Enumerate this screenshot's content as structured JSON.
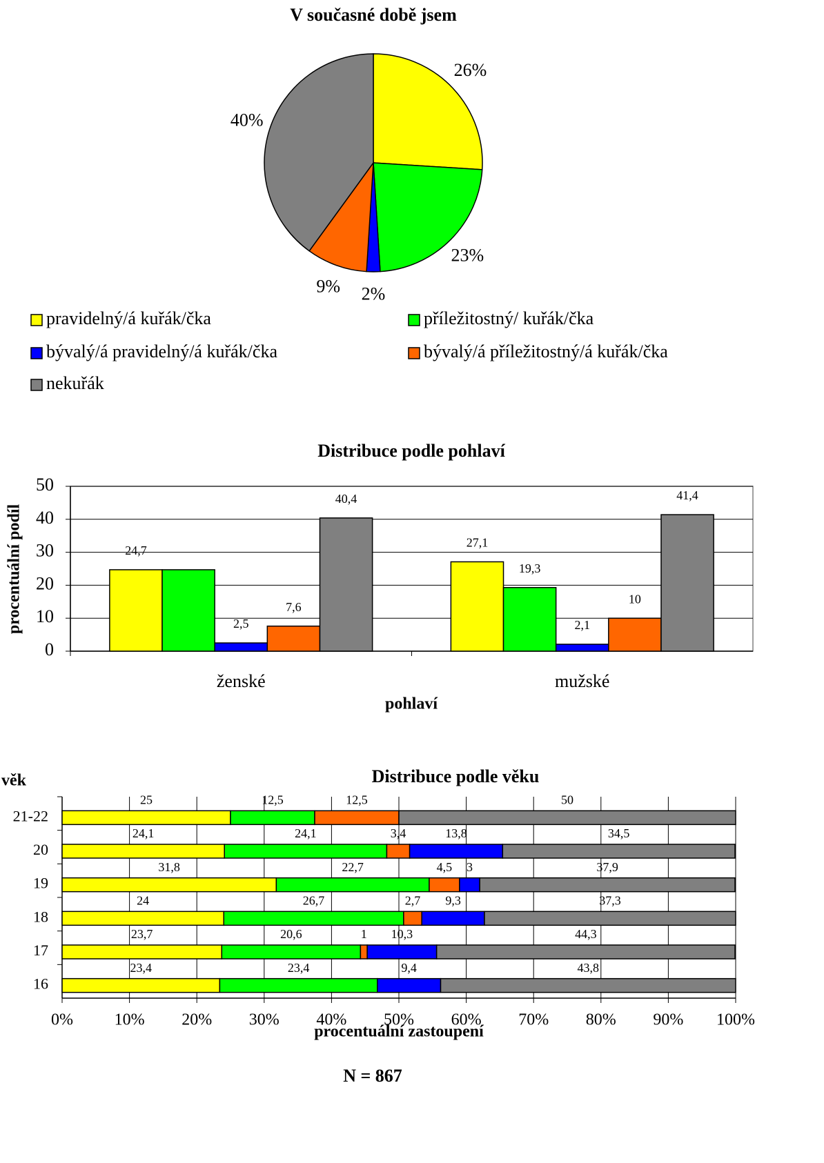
{
  "chart_data": [
    {
      "type": "pie",
      "title": "V současné době jsem",
      "categories": [
        "pravidelný/á kuřák/čka",
        "příležitostný/ kuřák/čka",
        "bývalý/á pravidelný/á kuřák/čka",
        "bývalý/á příležitostný/á kuřák/čka",
        "nekuřák"
      ],
      "values": [
        26,
        23,
        2,
        9,
        40
      ],
      "value_labels": [
        "26%",
        "23%",
        "2%",
        "9%",
        "40%"
      ],
      "colors": [
        "#ffff00",
        "#00ff00",
        "#0000ff",
        "#ff6600",
        "#808080"
      ],
      "legend": "bottom"
    },
    {
      "type": "bar",
      "title": "Distribuce podle pohlaví",
      "categories": [
        "ženské",
        "mužské"
      ],
      "series": [
        {
          "color": "#ffff00",
          "values": [
            24.7,
            27.1
          ],
          "value_labels": [
            "24,7",
            "27,1"
          ]
        },
        {
          "color": "#00ff00",
          "values": [
            24.7,
            19.3
          ],
          "value_labels": [
            null,
            "19,3"
          ]
        },
        {
          "color": "#0000ff",
          "values": [
            2.5,
            2.1
          ],
          "value_labels": [
            "2,5",
            "2,1"
          ]
        },
        {
          "color": "#ff6600",
          "values": [
            7.6,
            10
          ],
          "value_labels": [
            "7,6",
            "10"
          ]
        },
        {
          "color": "#808080",
          "values": [
            40.4,
            41.4
          ],
          "value_labels": [
            "40,4",
            "41,4"
          ]
        }
      ],
      "ylim": [
        0,
        50
      ],
      "yticks": [
        0,
        10,
        20,
        30,
        40,
        50
      ],
      "ylabel": "procentuální podíl",
      "xlabel": "pohlaví",
      "grid": true
    },
    {
      "type": "stacked_barh",
      "title": "Distribuce podle věku",
      "categories": [
        "21-22",
        "20",
        "19",
        "18",
        "17",
        "16"
      ],
      "series": [
        {
          "color": "#ffff00",
          "values": [
            25,
            24.1,
            31.8,
            24,
            23.7,
            23.4
          ],
          "value_labels": [
            "25",
            "24,1",
            "31,8",
            "24",
            "23,7",
            "23,4"
          ]
        },
        {
          "color": "#00ff00",
          "values": [
            12.5,
            24.1,
            22.7,
            26.7,
            20.6,
            23.4
          ],
          "value_labels": [
            "12,5",
            "24,1",
            "22,7",
            "26,7",
            "20,6",
            "23,4"
          ]
        },
        {
          "color": "#ff6600",
          "values": [
            12.5,
            3.4,
            4.5,
            2.7,
            1,
            null
          ],
          "value_labels": [
            "12,5",
            "3,4",
            "4,5",
            "2,7",
            "1",
            null
          ]
        },
        {
          "color": "#0000ff",
          "values": [
            null,
            13.8,
            3,
            9.3,
            10.3,
            9.4
          ],
          "value_labels": [
            null,
            "13,8",
            "3",
            "9,3",
            "10,3",
            "9,4"
          ]
        },
        {
          "color": "#808080",
          "values": [
            50,
            34.5,
            37.9,
            37.3,
            44.3,
            43.8
          ],
          "value_labels": [
            "50",
            "34,5",
            "37,9",
            "37,3",
            "44,3",
            "43,8"
          ]
        }
      ],
      "xlim": [
        0,
        100
      ],
      "xticks": [
        {
          "value": 0,
          "label": "0%"
        },
        {
          "value": 10,
          "label": "10%"
        },
        {
          "value": 20,
          "label": "20%"
        },
        {
          "value": 30,
          "label": "30%"
        },
        {
          "value": 40,
          "label": "40%"
        },
        {
          "value": 50,
          "label": "50%"
        },
        {
          "value": 60,
          "label": "60%"
        },
        {
          "value": 70,
          "label": "70%"
        },
        {
          "value": 80,
          "label": "80%"
        },
        {
          "value": 90,
          "label": "90%"
        },
        {
          "value": 100,
          "label": "100%"
        }
      ],
      "ylabel": "věk",
      "xlabel": "procentuální zastoupení",
      "grid": true
    }
  ],
  "footnote": "N = 867"
}
